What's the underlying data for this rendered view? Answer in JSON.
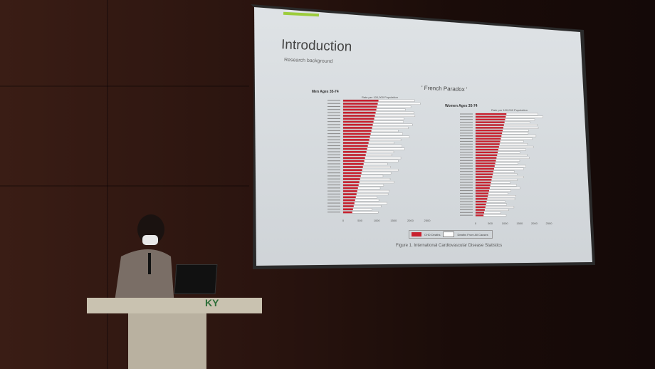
{
  "slide": {
    "title": "Introduction",
    "subtitle": "Research background",
    "heading": "' French Paradox '",
    "men_chart": {
      "title": "Men Ages 35-74",
      "axis_title": "Rate per 100,000 Population",
      "ticks": [
        "0",
        "500",
        "1000",
        "1500",
        "2000",
        "2500"
      ]
    },
    "women_chart": {
      "title": "Women Ages 35-74",
      "axis_title": "Rate per 100,000 Population",
      "ticks": [
        "0",
        "500",
        "1000",
        "1500",
        "2000",
        "2500"
      ]
    },
    "legend": {
      "chd": "CHD Deaths",
      "all": "Deaths From All Causes"
    },
    "caption": "Figure 1. International Cardiovascular Disease Statistics",
    "colors": {
      "chd": "#c8202e",
      "all": "#ffffff",
      "accent": "#9ccc3c"
    }
  },
  "podium": {
    "logo": "KY"
  }
}
